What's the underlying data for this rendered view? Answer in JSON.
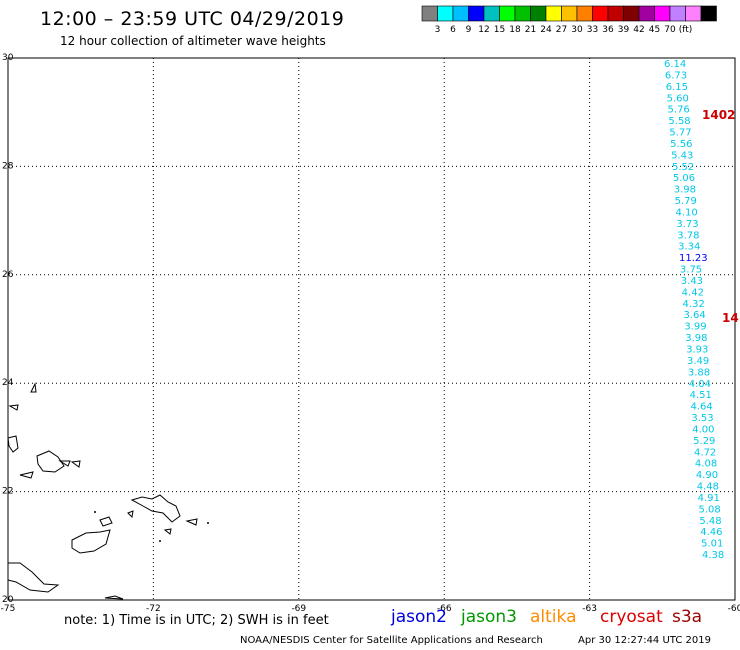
{
  "title": "12:00 – 23:59 UTC 04/29/2019",
  "subtitle": "12 hour collection of altimeter wave heights",
  "colorbar": {
    "colors": [
      "#808080",
      "#00ffff",
      "#00bfff",
      "#0000ff",
      "#00c0c0",
      "#00ff00",
      "#00c000",
      "#008000",
      "#ffff00",
      "#ffc000",
      "#ff8000",
      "#ff0000",
      "#c00000",
      "#800000",
      "#a000a0",
      "#ff00ff",
      "#c080ff",
      "#ff80ff",
      "#000000"
    ],
    "labels": [
      "3",
      "6",
      "9",
      "12",
      "15",
      "18",
      "21",
      "24",
      "27",
      "30",
      "33",
      "36",
      "39",
      "42",
      "45",
      "70",
      "(ft)"
    ]
  },
  "axes": {
    "lat_labels": [
      "30",
      "28",
      "26",
      "24",
      "22",
      "20"
    ],
    "lon_labels": [
      "-75",
      "-72",
      "-69",
      "-66",
      "-63",
      "-60"
    ]
  },
  "wave_heights": [
    {
      "value": "6.14",
      "color": "#00c8e6"
    },
    {
      "value": "6.73",
      "color": "#00c8e6"
    },
    {
      "value": "6.15",
      "color": "#00c8e6"
    },
    {
      "value": "5.60",
      "color": "#00c8e6"
    },
    {
      "value": "5.76",
      "color": "#00c8e6"
    },
    {
      "value": "5.58",
      "color": "#00c8e6"
    },
    {
      "value": "5.77",
      "color": "#00c8e6"
    },
    {
      "value": "5.56",
      "color": "#00c8e6"
    },
    {
      "value": "5.43",
      "color": "#00c8e6"
    },
    {
      "value": "5.52",
      "color": "#00c8e6"
    },
    {
      "value": "5.06",
      "color": "#00c8e6"
    },
    {
      "value": "3.98",
      "color": "#00c8e6"
    },
    {
      "value": "5.79",
      "color": "#00c8e6"
    },
    {
      "value": "4.10",
      "color": "#00c8e6"
    },
    {
      "value": "3.73",
      "color": "#00c8e6"
    },
    {
      "value": "3.78",
      "color": "#00c8e6"
    },
    {
      "value": "3.34",
      "color": "#00c8e6"
    },
    {
      "value": "11.23",
      "color": "#0000ff"
    },
    {
      "value": "3.75",
      "color": "#00c8e6"
    },
    {
      "value": "3.43",
      "color": "#00c8e6"
    },
    {
      "value": "4.42",
      "color": "#00c8e6"
    },
    {
      "value": "4.32",
      "color": "#00c8e6"
    },
    {
      "value": "3.64",
      "color": "#00c8e6"
    },
    {
      "value": "3.99",
      "color": "#00c8e6"
    },
    {
      "value": "3.98",
      "color": "#00c8e6"
    },
    {
      "value": "3.93",
      "color": "#00c8e6"
    },
    {
      "value": "3.49",
      "color": "#00c8e6"
    },
    {
      "value": "3.88",
      "color": "#00c8e6"
    },
    {
      "value": "4.04",
      "color": "#00c8e6"
    },
    {
      "value": "4.51",
      "color": "#00c8e6"
    },
    {
      "value": "4.64",
      "color": "#00c8e6"
    },
    {
      "value": "3.53",
      "color": "#00c8e6"
    },
    {
      "value": "4.00",
      "color": "#00c8e6"
    },
    {
      "value": "5.29",
      "color": "#00c8e6"
    },
    {
      "value": "4.72",
      "color": "#00c8e6"
    },
    {
      "value": "4.08",
      "color": "#00c8e6"
    },
    {
      "value": "4.90",
      "color": "#00c8e6"
    },
    {
      "value": "4.48",
      "color": "#00c8e6"
    },
    {
      "value": "4.91",
      "color": "#00c8e6"
    },
    {
      "value": "5.08",
      "color": "#00c8e6"
    },
    {
      "value": "5.48",
      "color": "#00c8e6"
    },
    {
      "value": "4.46",
      "color": "#00c8e6"
    },
    {
      "value": "5.01",
      "color": "#00c8e6"
    },
    {
      "value": "4.38",
      "color": "#00c8e6"
    }
  ],
  "pass_labels": [
    {
      "text": "1402",
      "color": "#cc0000"
    },
    {
      "text": "14",
      "color": "#cc0000"
    }
  ],
  "note": "note: 1) Time is in UTC; 2) SWH is in feet",
  "satellites": [
    {
      "name": "jason2",
      "color": "#0000dd"
    },
    {
      "name": "jason3",
      "color": "#009900"
    },
    {
      "name": "altika",
      "color": "#ff8c00"
    },
    {
      "name": "cryosat",
      "color": "#dd0000"
    },
    {
      "name": "s3a",
      "color": "#990000"
    }
  ],
  "credit": "NOAA/NESDIS Center for Satellite Applications and Research",
  "timestamp": "Apr 30 12:27:44 UTC 2019"
}
